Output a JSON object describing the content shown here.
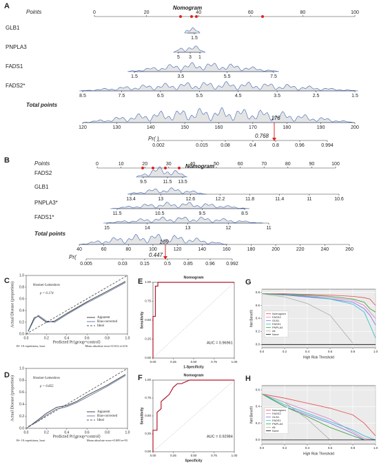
{
  "chart_data": [
    {
      "type": "nomogram",
      "panel": "A",
      "title": "Nomogram",
      "rows": [
        {
          "label": "Points",
          "ticks": [
            0,
            20,
            40,
            60,
            80,
            100
          ]
        },
        {
          "label": "GLB1",
          "ticks": [
            1.5
          ]
        },
        {
          "label": "PNPLA3",
          "ticks": [
            5,
            3,
            1
          ]
        },
        {
          "label": "FADS1",
          "ticks": [
            1.5,
            3.5,
            5.5,
            7.5
          ]
        },
        {
          "label": "FADS2*",
          "ticks": [
            8.5,
            7.5,
            6.5,
            5.5,
            4.5,
            3.5,
            2.5,
            1.5
          ]
        },
        {
          "label": "Total points",
          "ticks": [
            120,
            130,
            140,
            150,
            160,
            170,
            180,
            190,
            200
          ]
        },
        {
          "label": "Pr( )",
          "ticks": [
            0.002,
            0.015,
            0.08,
            0.4,
            0.8,
            0.96,
            0.994
          ]
        }
      ],
      "total_points": 176,
      "probability": 0.768
    },
    {
      "type": "nomogram",
      "panel": "B",
      "title": "Nomogram",
      "rows": [
        {
          "label": "Points",
          "ticks": [
            0,
            10,
            20,
            30,
            40,
            50,
            60,
            70,
            80,
            90,
            100
          ]
        },
        {
          "label": "FADS2",
          "ticks": [
            9.5,
            11.5,
            13.5
          ]
        },
        {
          "label": "GLB1",
          "ticks": [
            13.4,
            13,
            12.6,
            12.2,
            11.8,
            11.4,
            11,
            10.6
          ]
        },
        {
          "label": "PNPLA3*",
          "ticks": [
            11.5,
            10.5,
            9.5,
            8.5
          ]
        },
        {
          "label": "FADS1*",
          "ticks": [
            15,
            14,
            13,
            12,
            11
          ]
        },
        {
          "label": "Total points",
          "ticks": [
            40,
            60,
            80,
            100,
            120,
            140,
            160,
            180,
            200,
            220,
            240,
            260
          ]
        },
        {
          "label": "Pr(",
          "ticks": [
            0.005,
            0.03,
            0.15,
            0.5,
            0.85,
            0.96,
            0.992
          ]
        }
      ],
      "total_points": 109,
      "probability": 0.447
    },
    {
      "type": "calibration",
      "panel": "C",
      "annotation": "Hosmer-Lemeshow",
      "p_label": "p = 0.174",
      "xlabel": "Predicted Pr{group=control}",
      "ylabel": "Actual Disease (proportion)",
      "footnote_left": "B= 10 repetitions, boot",
      "footnote_right": "Mean absolute error=0.012 n=216",
      "xlim": [
        0,
        1
      ],
      "ylim": [
        0,
        1
      ],
      "xticks": [
        {
          "value": 0,
          "label": "0.0"
        },
        0.2,
        0.4,
        0.6,
        0.8,
        {
          "value": 1,
          "label": "1.0"
        }
      ],
      "yticks": [
        {
          "value": 0,
          "label": "0.0"
        },
        0.2,
        0.4,
        0.6,
        0.8,
        {
          "value": 1,
          "label": "1.0"
        }
      ],
      "series": [
        {
          "name": "Apparent",
          "color": "#333333",
          "line_style": "solid",
          "x": [
            0.02,
            0.08,
            0.12,
            0.2,
            0.28,
            0.4,
            0.6,
            0.8,
            0.98
          ],
          "values": [
            0.05,
            0.28,
            0.3,
            0.2,
            0.22,
            0.35,
            0.55,
            0.73,
            0.9
          ]
        },
        {
          "name": "Bias-corrected",
          "color": "#5b6f9e",
          "line_style": "solid",
          "x": [
            0.02,
            0.08,
            0.12,
            0.2,
            0.28,
            0.4,
            0.6,
            0.8,
            0.98
          ],
          "values": [
            0.04,
            0.25,
            0.32,
            0.22,
            0.2,
            0.33,
            0.53,
            0.71,
            0.88
          ]
        },
        {
          "name": "Ideal",
          "color": "#555555",
          "line_style": "dashed",
          "x": [
            0,
            1
          ],
          "values": [
            0,
            1
          ]
        }
      ]
    },
    {
      "type": "calibration",
      "panel": "D",
      "annotation": "Hosmer-Lemeshow",
      "p_label": "p = 0.855",
      "xlabel": "Predicted Pr{group=control}",
      "ylabel": "Actual Disease (proportion)",
      "footnote_left": "B= 10 repetitions, boot",
      "footnote_right": "Mean absolute error=0.009 n=93",
      "xlim": [
        0,
        1
      ],
      "ylim": [
        0,
        1
      ],
      "xticks": [
        {
          "value": 0,
          "label": "0.0"
        },
        0.2,
        0.4,
        0.6,
        0.8,
        {
          "value": 1,
          "label": "1.0"
        }
      ],
      "yticks": [
        {
          "value": 0,
          "label": "0.0"
        },
        0.2,
        0.4,
        0.6,
        0.8,
        {
          "value": 1,
          "label": "1.0"
        }
      ],
      "series": [
        {
          "name": "Apparent",
          "color": "#333333",
          "line_style": "solid",
          "x": [
            0.02,
            0.1,
            0.2,
            0.3,
            0.4,
            0.5,
            0.6,
            0.8,
            0.98
          ],
          "values": [
            0.02,
            0.12,
            0.25,
            0.35,
            0.38,
            0.45,
            0.55,
            0.72,
            0.9
          ]
        },
        {
          "name": "Bias-corrected",
          "color": "#5b6f9e",
          "line_style": "solid",
          "x": [
            0.02,
            0.1,
            0.2,
            0.3,
            0.4,
            0.5,
            0.6,
            0.8,
            0.98
          ],
          "values": [
            0.03,
            0.1,
            0.22,
            0.32,
            0.36,
            0.43,
            0.52,
            0.7,
            0.88
          ]
        },
        {
          "name": "Ideal",
          "color": "#555555",
          "line_style": "dashed",
          "x": [
            0,
            1
          ],
          "values": [
            0,
            1
          ]
        }
      ]
    },
    {
      "type": "roc",
      "panel": "E",
      "title": "Nomogram",
      "auc_label": "AUC = 0.96961",
      "xlabel": "1-Specificity",
      "ylabel": "Sensitivity",
      "color": "#b2182b",
      "xlim": [
        0,
        1
      ],
      "ylim": [
        0,
        1
      ],
      "xticks": [
        {
          "value": 0,
          "label": "0.00"
        },
        {
          "value": 0.25,
          "label": "0.25"
        },
        {
          "value": 0.5,
          "label": "0.50"
        },
        {
          "value": 0.75,
          "label": "0.75"
        },
        {
          "value": 1,
          "label": "1.00"
        }
      ],
      "yticks": [
        {
          "value": 0,
          "label": "0.00"
        },
        {
          "value": 0.25,
          "label": "0.25"
        },
        {
          "value": 0.5,
          "label": "0.50"
        },
        {
          "value": 0.75,
          "label": "0.75"
        },
        {
          "value": 1,
          "label": "1.00"
        }
      ],
      "x": [
        0,
        0,
        0.03,
        0.03,
        0.06,
        0.06,
        1
      ],
      "values": [
        0,
        0.55,
        0.55,
        0.95,
        0.95,
        1,
        1
      ]
    },
    {
      "type": "roc",
      "panel": "F",
      "title": "Nomogram",
      "auc_label": "AUC = 0.92984",
      "xlabel": "Specificity",
      "ylabel": "Sensitivity",
      "color": "#b2182b",
      "xlim": [
        0,
        1
      ],
      "ylim": [
        0,
        1
      ],
      "xticks": [
        {
          "value": 0,
          "label": "0.00"
        },
        {
          "value": 0.25,
          "label": "0.25"
        },
        {
          "value": 0.5,
          "label": "0.50"
        },
        {
          "value": 0.75,
          "label": "0.75"
        },
        {
          "value": 1,
          "label": "1.00"
        }
      ],
      "yticks": [
        {
          "value": 0,
          "label": "0.00"
        },
        {
          "value": 0.25,
          "label": "0.25"
        },
        {
          "value": 0.5,
          "label": "0.50"
        },
        {
          "value": 0.75,
          "label": "0.75"
        },
        {
          "value": 1,
          "label": "1.00"
        }
      ],
      "x": [
        0,
        0,
        0.05,
        0.05,
        0.1,
        0.1,
        0.15,
        0.2,
        0.25,
        0.3,
        0.35,
        0.45,
        1
      ],
      "values": [
        0,
        0.3,
        0.3,
        0.55,
        0.6,
        0.7,
        0.75,
        0.8,
        0.9,
        0.95,
        0.95,
        1,
        1
      ]
    },
    {
      "type": "dca",
      "panel": "G",
      "xlabel": "High Risk Threshold",
      "ylabel": "Net Benefit",
      "xlim": [
        0,
        1
      ],
      "ylim": [
        -0.05,
        0.85
      ],
      "xticks": [
        {
          "value": 0,
          "label": "0.0"
        },
        0.2,
        0.4,
        0.6,
        0.8,
        {
          "value": 1,
          "label": "1.0"
        }
      ],
      "yticks": [
        {
          "value": 0,
          "label": "0.0"
        },
        0.2,
        0.4,
        0.6,
        0.8
      ],
      "x": [
        0,
        0.2,
        0.4,
        0.6,
        0.8,
        0.9,
        0.95,
        1
      ],
      "series": [
        {
          "name": "Nomogram",
          "color": "#e8444a",
          "values": [
            0.78,
            0.78,
            0.77,
            0.76,
            0.74,
            0.72,
            0.7,
            0.6
          ]
        },
        {
          "name": "FADS2",
          "color": "#e377c2",
          "values": [
            0.78,
            0.77,
            0.75,
            0.72,
            0.68,
            0.6,
            0.5,
            0.4
          ]
        },
        {
          "name": "GLB1",
          "color": "#7b68ee",
          "values": [
            0.78,
            0.76,
            0.73,
            0.7,
            0.65,
            0.55,
            0.45,
            0.3
          ]
        },
        {
          "name": "FADS1",
          "color": "#17becf",
          "values": [
            0.78,
            0.77,
            0.74,
            0.7,
            0.62,
            0.5,
            0.3,
            0.1
          ]
        },
        {
          "name": "PNPLA3",
          "color": "#2ca02c",
          "values": [
            0.78,
            0.77,
            0.76,
            0.74,
            0.7,
            0.65,
            0.55,
            0.5
          ]
        },
        {
          "name": "All",
          "color": "#aaaaaa",
          "values": [
            0.78,
            0.73,
            0.63,
            0.45,
            0.02,
            null,
            null,
            null
          ]
        },
        {
          "name": "None",
          "color": "#000000",
          "values": [
            0,
            0,
            0,
            0,
            0,
            0,
            0,
            0
          ]
        }
      ]
    },
    {
      "type": "dca",
      "panel": "H",
      "xlabel": "High Risk Threshold",
      "ylabel": "Net Benefit",
      "xlim": [
        0,
        1
      ],
      "ylim": [
        -0.05,
        0.65
      ],
      "xticks": [
        {
          "value": 0,
          "label": "0.0"
        },
        0.2,
        0.4,
        0.6,
        0.8,
        {
          "value": 1,
          "label": "1.0"
        }
      ],
      "yticks": [
        {
          "value": 0,
          "label": "0.0"
        },
        0.2,
        0.4,
        0.6
      ],
      "x": [
        0,
        0.2,
        0.4,
        0.6,
        0.8,
        0.9,
        1
      ],
      "series": [
        {
          "name": "Nomogram",
          "color": "#e8444a",
          "values": [
            0.55,
            0.5,
            0.44,
            0.38,
            0.3,
            0.2,
            0.05
          ]
        },
        {
          "name": "FADS2",
          "color": "#e377c2",
          "values": [
            0.55,
            0.45,
            0.35,
            0.25,
            0.1,
            0.02,
            0
          ]
        },
        {
          "name": "GLB1",
          "color": "#7b68ee",
          "values": [
            0.55,
            0.4,
            0.3,
            0.2,
            0.08,
            0,
            null
          ]
        },
        {
          "name": "FADS1",
          "color": "#17becf",
          "values": [
            0.55,
            0.42,
            0.32,
            0.22,
            0.12,
            0.05,
            0
          ]
        },
        {
          "name": "PNPLA3",
          "color": "#2ca02c",
          "values": [
            0.55,
            0.4,
            0.28,
            0.15,
            0.05,
            0,
            null
          ]
        },
        {
          "name": "All",
          "color": "#aaaaaa",
          "values": [
            0.55,
            0.45,
            0.25,
            0,
            null,
            null,
            null
          ]
        },
        {
          "name": "None",
          "color": "#000000",
          "values": [
            0,
            0,
            0,
            0,
            0,
            0,
            0
          ]
        }
      ]
    }
  ]
}
